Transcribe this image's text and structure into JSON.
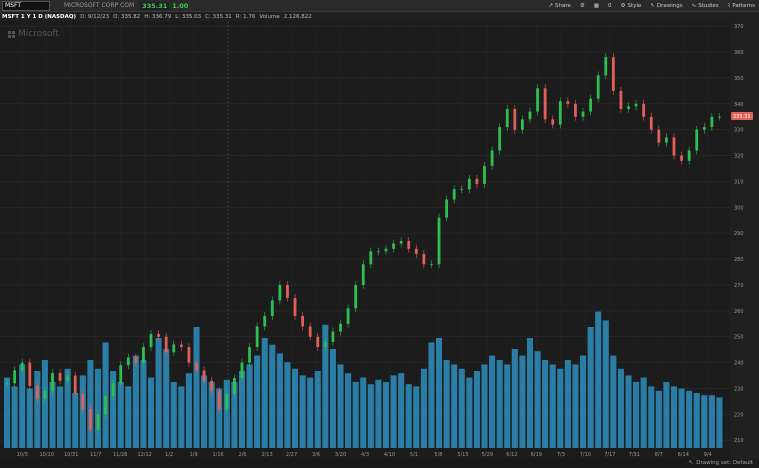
{
  "header": {
    "symbol": "MSFT",
    "company": "MICROSOFT CORP COM",
    "price": "335.31",
    "change": "1.00"
  },
  "toolbar": {
    "share": "Share",
    "style": "Style",
    "drawings": "Drawings",
    "studies": "Studies",
    "patterns": "Patterns",
    "more": "0"
  },
  "info": {
    "title": "MSFT 1 Y 1 D (NASDAQ)",
    "date": "D: 9/12/23",
    "open": "O: 335.82",
    "high": "H: 336.79",
    "low": "L: 335.03",
    "close": "C: 335.31",
    "range": "R: 1.76",
    "volume_label": "Volume",
    "volume": "2,126,822"
  },
  "watermark": "Microsoft",
  "footer": {
    "drawing_set": "Drawing set: Default"
  },
  "chart_data": {
    "type": "candlestick",
    "y_axis_ticks": [
      210,
      220,
      230,
      240,
      250,
      260,
      270,
      280,
      290,
      300,
      310,
      320,
      330,
      340,
      350,
      360,
      370
    ],
    "ylim": [
      207,
      372
    ],
    "x_ticks": [
      "10/3",
      "10/10",
      "10/31",
      "11/7",
      "11/28",
      "12/12",
      "1/2",
      "1/9",
      "1/16",
      "2/6",
      "2/13",
      "2/27",
      "3/6",
      "3/20",
      "4/3",
      "4/10",
      "5/1",
      "5/8",
      "5/15",
      "5/29",
      "6/12",
      "6/19",
      "7/3",
      "7/10",
      "7/17",
      "7/31",
      "8/7",
      "8/14",
      "9/4"
    ],
    "last_price": "335.31",
    "close": [
      232,
      237,
      240,
      231,
      226,
      229,
      236,
      233,
      235,
      228,
      222,
      214,
      220,
      227,
      232,
      239,
      242,
      240,
      246,
      251,
      250,
      244,
      247,
      246,
      240,
      237,
      233,
      229,
      222,
      228,
      234,
      240,
      246,
      254,
      258,
      264,
      270,
      265,
      258,
      254,
      250,
      246,
      248,
      252,
      255,
      261,
      270,
      278,
      283,
      283,
      284,
      286,
      287,
      284,
      282,
      278,
      278,
      296,
      303,
      307,
      307,
      311,
      309,
      316,
      322,
      331,
      338,
      330,
      334,
      337,
      346,
      334,
      332,
      341,
      340,
      335,
      337,
      342,
      351,
      358,
      345,
      338,
      339,
      340,
      335,
      330,
      325,
      327,
      320,
      318,
      322,
      330,
      331,
      335,
      335
    ],
    "volume_rel": [
      0.32,
      0.28,
      0.38,
      0.27,
      0.35,
      0.4,
      0.3,
      0.28,
      0.36,
      0.25,
      0.33,
      0.4,
      0.36,
      0.48,
      0.35,
      0.3,
      0.28,
      0.42,
      0.4,
      0.32,
      0.5,
      0.45,
      0.3,
      0.28,
      0.34,
      0.55,
      0.33,
      0.3,
      0.27,
      0.31,
      0.3,
      0.35,
      0.38,
      0.42,
      0.5,
      0.47,
      0.43,
      0.39,
      0.36,
      0.33,
      0.32,
      0.35,
      0.56,
      0.45,
      0.38,
      0.34,
      0.3,
      0.32,
      0.29,
      0.31,
      0.3,
      0.33,
      0.34,
      0.29,
      0.28,
      0.36,
      0.48,
      0.5,
      0.4,
      0.38,
      0.36,
      0.32,
      0.35,
      0.38,
      0.42,
      0.4,
      0.38,
      0.45,
      0.42,
      0.5,
      0.44,
      0.4,
      0.38,
      0.36,
      0.4,
      0.38,
      0.42,
      0.55,
      0.62,
      0.58,
      0.42,
      0.36,
      0.33,
      0.3,
      0.32,
      0.28,
      0.26,
      0.3,
      0.28,
      0.27,
      0.26,
      0.25,
      0.24,
      0.24,
      0.23
    ]
  }
}
